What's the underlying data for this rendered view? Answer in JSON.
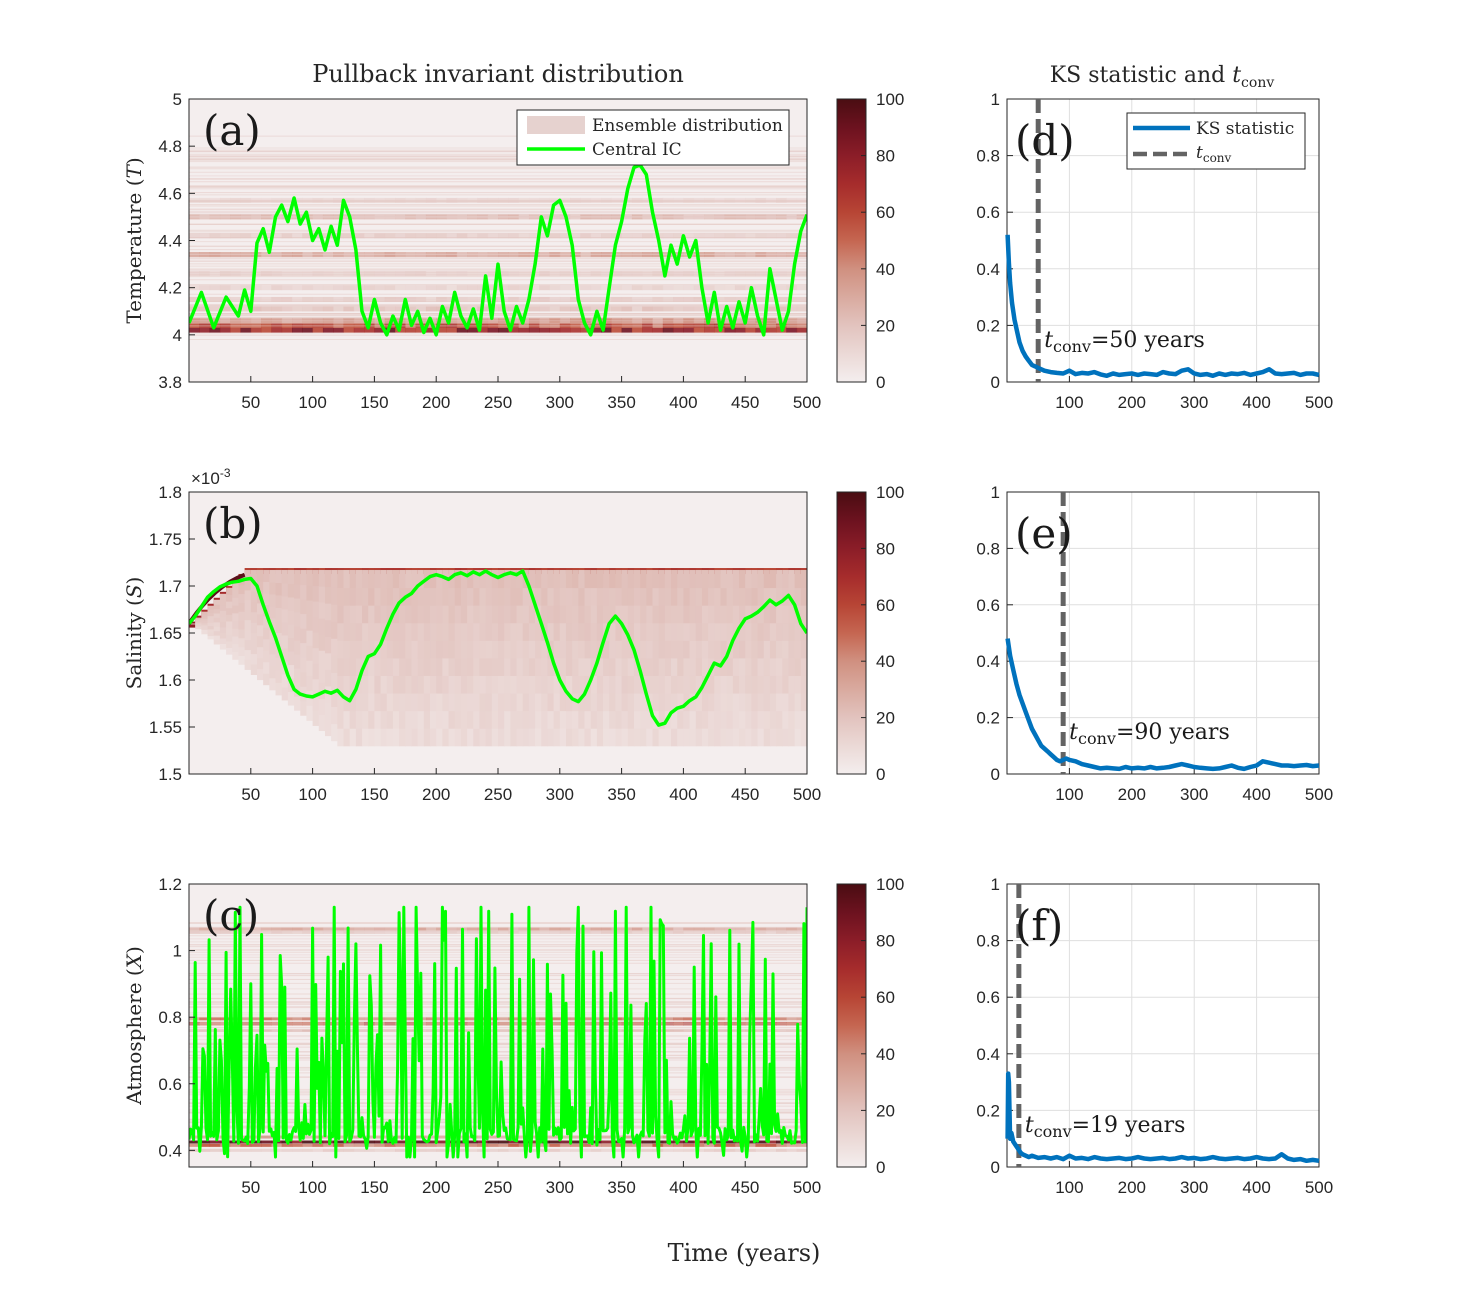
{
  "titles": {
    "left": "Pullback invariant distribution",
    "right_prefix": "KS statistic and ",
    "right_t": "t",
    "right_sub": "conv"
  },
  "xlabel": "Time (years)",
  "legend_left": {
    "ensemble": "Ensemble distribution",
    "central": "Central IC"
  },
  "legend_right": {
    "ks": "KS statistic",
    "t": "t",
    "sub": "conv"
  },
  "colors": {
    "ks_line": "#0072BD",
    "tconv_line": "#636363",
    "central_ic": "#00FF00",
    "cmap_low": "#f3ecec",
    "cmap_high": "#4a0d12"
  },
  "chart_data": [
    {
      "type": "heatmap",
      "panel": "(a)",
      "ylabel": "Temperature (T)",
      "ylabel_parts": [
        "Temperature (",
        "T",
        ")"
      ],
      "xlim": [
        0,
        500
      ],
      "ylim": [
        3.8,
        5
      ],
      "xticks": [
        50,
        100,
        150,
        200,
        250,
        300,
        350,
        400,
        450,
        500
      ],
      "yticks": [
        3.8,
        4,
        4.2,
        4.4,
        4.6,
        4.8,
        5
      ],
      "yticklabels": [
        "3.8",
        "4",
        "4.2",
        "4.4",
        "4.6",
        "4.8",
        "5"
      ],
      "colorbar": {
        "range": [
          0,
          100
        ],
        "ticks": [
          "0",
          "20",
          "40",
          "60",
          "80",
          "100"
        ]
      },
      "bands": [
        [
          4.02,
          75
        ],
        [
          4.04,
          55
        ],
        [
          4.06,
          35
        ],
        [
          4.11,
          18
        ],
        [
          4.15,
          15
        ],
        [
          4.2,
          12
        ],
        [
          4.26,
          12
        ],
        [
          4.34,
          30
        ],
        [
          4.42,
          14
        ],
        [
          4.5,
          22
        ],
        [
          4.57,
          10
        ]
      ],
      "central_ic": {
        "x": [
          0,
          10,
          20,
          30,
          40,
          45,
          50,
          55,
          60,
          65,
          70,
          75,
          80,
          85,
          90,
          95,
          100,
          105,
          110,
          115,
          120,
          125,
          130,
          135,
          140,
          145,
          150,
          155,
          160,
          165,
          170,
          175,
          180,
          185,
          190,
          195,
          200,
          205,
          210,
          215,
          220,
          225,
          230,
          235,
          240,
          245,
          250,
          255,
          260,
          265,
          270,
          275,
          280,
          285,
          290,
          295,
          300,
          305,
          310,
          315,
          320,
          325,
          330,
          335,
          340,
          345,
          350,
          355,
          360,
          365,
          370,
          375,
          380,
          385,
          390,
          395,
          400,
          405,
          410,
          415,
          420,
          425,
          430,
          435,
          440,
          445,
          450,
          455,
          460,
          465,
          470,
          475,
          480,
          485,
          490,
          495,
          500
        ],
        "y": [
          4.05,
          4.18,
          4.03,
          4.16,
          4.08,
          4.19,
          4.1,
          4.39,
          4.45,
          4.35,
          4.5,
          4.55,
          4.48,
          4.58,
          4.47,
          4.52,
          4.4,
          4.45,
          4.36,
          4.46,
          4.38,
          4.57,
          4.5,
          4.36,
          4.1,
          4.03,
          4.15,
          4.05,
          4.0,
          4.08,
          4.02,
          4.15,
          4.04,
          4.1,
          4.01,
          4.07,
          4.0,
          4.12,
          4.05,
          4.18,
          4.08,
          4.03,
          4.11,
          4.02,
          4.25,
          4.07,
          4.3,
          4.1,
          4.02,
          4.12,
          4.05,
          4.15,
          4.3,
          4.5,
          4.42,
          4.55,
          4.57,
          4.5,
          4.38,
          4.15,
          4.05,
          4.0,
          4.1,
          4.02,
          4.2,
          4.38,
          4.48,
          4.62,
          4.71,
          4.72,
          4.68,
          4.52,
          4.4,
          4.25,
          4.38,
          4.3,
          4.42,
          4.33,
          4.4,
          4.2,
          4.05,
          4.18,
          4.02,
          4.12,
          4.03,
          4.14,
          4.05,
          4.2,
          4.08,
          4.0,
          4.28,
          4.15,
          4.02,
          4.1,
          4.3,
          4.44,
          4.51
        ]
      }
    },
    {
      "type": "heatmap",
      "panel": "(b)",
      "ylabel": "Salinity (S)",
      "ylabel_parts": [
        "Salinity (",
        "S",
        ")"
      ],
      "xlim": [
        0,
        500
      ],
      "ylim": [
        1.5,
        1.8
      ],
      "y_multiplier": "×10",
      "y_multiplier_exp": "-3",
      "xticks": [
        50,
        100,
        150,
        200,
        250,
        300,
        350,
        400,
        450,
        500
      ],
      "yticks": [
        1.5,
        1.55,
        1.6,
        1.65,
        1.7,
        1.75,
        1.8
      ],
      "yticklabels": [
        "1.5",
        "1.55",
        "1.6",
        "1.65",
        "1.7",
        "1.75",
        "1.8"
      ],
      "colorbar": {
        "range": [
          0,
          100
        ],
        "ticks": [
          "0",
          "20",
          "40",
          "60",
          "80",
          "100"
        ]
      },
      "central_ic": {
        "x": [
          0,
          5,
          10,
          15,
          20,
          25,
          30,
          35,
          40,
          45,
          50,
          55,
          60,
          65,
          70,
          75,
          80,
          85,
          90,
          95,
          100,
          105,
          110,
          115,
          120,
          125,
          130,
          135,
          140,
          145,
          150,
          155,
          160,
          165,
          170,
          175,
          180,
          185,
          190,
          195,
          200,
          205,
          210,
          215,
          220,
          225,
          230,
          235,
          240,
          245,
          250,
          255,
          260,
          265,
          270,
          275,
          280,
          285,
          290,
          295,
          300,
          305,
          310,
          315,
          320,
          325,
          330,
          335,
          340,
          345,
          350,
          355,
          360,
          365,
          370,
          375,
          380,
          385,
          390,
          395,
          400,
          405,
          410,
          415,
          420,
          425,
          430,
          435,
          440,
          445,
          450,
          455,
          460,
          465,
          470,
          475,
          480,
          485,
          490,
          495,
          500
        ],
        "y": [
          1.66,
          1.668,
          1.678,
          1.688,
          1.694,
          1.699,
          1.702,
          1.704,
          1.705,
          1.707,
          1.708,
          1.7,
          1.68,
          1.662,
          1.645,
          1.625,
          1.605,
          1.59,
          1.585,
          1.583,
          1.582,
          1.585,
          1.588,
          1.586,
          1.589,
          1.582,
          1.578,
          1.59,
          1.61,
          1.625,
          1.628,
          1.638,
          1.655,
          1.67,
          1.682,
          1.688,
          1.692,
          1.7,
          1.705,
          1.71,
          1.712,
          1.71,
          1.707,
          1.712,
          1.714,
          1.711,
          1.715,
          1.712,
          1.716,
          1.712,
          1.709,
          1.712,
          1.714,
          1.712,
          1.716,
          1.7,
          1.68,
          1.66,
          1.64,
          1.618,
          1.6,
          1.588,
          1.58,
          1.577,
          1.585,
          1.6,
          1.618,
          1.64,
          1.66,
          1.668,
          1.66,
          1.648,
          1.632,
          1.61,
          1.585,
          1.562,
          1.552,
          1.554,
          1.565,
          1.57,
          1.572,
          1.578,
          1.582,
          1.592,
          1.605,
          1.618,
          1.615,
          1.625,
          1.642,
          1.655,
          1.665,
          1.668,
          1.672,
          1.678,
          1.685,
          1.68,
          1.684,
          1.69,
          1.68,
          1.66,
          1.65
        ]
      }
    },
    {
      "type": "heatmap",
      "panel": "(c)",
      "ylabel": "Atmosphere (X)",
      "ylabel_parts": [
        "Atmosphere (",
        "X",
        ")"
      ],
      "xlim": [
        0,
        500
      ],
      "ylim": [
        0.35,
        1.2
      ],
      "xticks": [
        50,
        100,
        150,
        200,
        250,
        300,
        350,
        400,
        450,
        500
      ],
      "yticks": [
        0.4,
        0.6,
        0.8,
        1,
        1.2
      ],
      "yticklabels": [
        "0.4",
        "0.6",
        "0.8",
        "1",
        "1.2"
      ],
      "colorbar": {
        "range": [
          0,
          100
        ],
        "ticks": [
          "0",
          "20",
          "40",
          "60",
          "80",
          "100"
        ]
      },
      "bands": [
        [
          0.425,
          100
        ],
        [
          0.415,
          45
        ],
        [
          0.44,
          30
        ],
        [
          0.4,
          14
        ],
        [
          0.47,
          12
        ],
        [
          0.78,
          55
        ],
        [
          0.795,
          40
        ],
        [
          0.76,
          20
        ],
        [
          1.065,
          28
        ],
        [
          1.055,
          14
        ]
      ],
      "central_ic": {
        "t_start": 0,
        "t_end": 500,
        "n_points": 400,
        "y_min": 0.38,
        "y_max": 1.13,
        "levels": [
          0.42,
          0.78,
          1.06,
          0.6
        ]
      }
    },
    {
      "type": "line",
      "panel": "(d)",
      "xlim": [
        0,
        500
      ],
      "ylim": [
        0,
        1
      ],
      "xticks": [
        100,
        200,
        300,
        400,
        500
      ],
      "yticks": [
        0,
        0.2,
        0.4,
        0.6,
        0.8,
        1
      ],
      "yticklabels": [
        "0",
        "0.2",
        "0.4",
        "0.6",
        "0.8",
        "1"
      ],
      "t_conv": 50,
      "annotation": {
        "t": "t",
        "sub": "conv",
        "text": "=50 years"
      },
      "ks_statistic": {
        "x": [
          1,
          3,
          5,
          8,
          12,
          16,
          20,
          25,
          30,
          35,
          40,
          45,
          50,
          55,
          60,
          70,
          80,
          90,
          100,
          110,
          120,
          130,
          140,
          150,
          160,
          170,
          180,
          190,
          200,
          210,
          220,
          230,
          240,
          250,
          260,
          270,
          280,
          290,
          300,
          310,
          320,
          330,
          340,
          350,
          360,
          370,
          380,
          390,
          400,
          410,
          420,
          430,
          440,
          450,
          460,
          470,
          480,
          490,
          500
        ],
        "y": [
          0.52,
          0.42,
          0.35,
          0.28,
          0.22,
          0.18,
          0.14,
          0.11,
          0.09,
          0.075,
          0.06,
          0.055,
          0.05,
          0.045,
          0.04,
          0.035,
          0.032,
          0.03,
          0.04,
          0.028,
          0.032,
          0.03,
          0.035,
          0.027,
          0.022,
          0.03,
          0.025,
          0.028,
          0.03,
          0.025,
          0.03,
          0.028,
          0.025,
          0.035,
          0.03,
          0.028,
          0.04,
          0.045,
          0.03,
          0.025,
          0.028,
          0.022,
          0.03,
          0.025,
          0.03,
          0.028,
          0.032,
          0.025,
          0.03,
          0.035,
          0.045,
          0.03,
          0.028,
          0.03,
          0.032,
          0.025,
          0.03,
          0.03,
          0.025
        ]
      }
    },
    {
      "type": "line",
      "panel": "(e)",
      "xlim": [
        0,
        500
      ],
      "ylim": [
        0,
        1
      ],
      "xticks": [
        100,
        200,
        300,
        400,
        500
      ],
      "yticks": [
        0,
        0.2,
        0.4,
        0.6,
        0.8,
        1
      ],
      "yticklabels": [
        "0",
        "0.2",
        "0.4",
        "0.6",
        "0.8",
        "1"
      ],
      "t_conv": 90,
      "annotation": {
        "t": "t",
        "sub": "conv",
        "text": "=90 years"
      },
      "ks_statistic": {
        "x": [
          1,
          5,
          10,
          15,
          20,
          25,
          30,
          35,
          40,
          45,
          50,
          55,
          60,
          65,
          70,
          75,
          80,
          85,
          90,
          95,
          100,
          110,
          120,
          130,
          140,
          150,
          160,
          170,
          180,
          190,
          200,
          210,
          220,
          230,
          240,
          250,
          260,
          270,
          280,
          290,
          300,
          310,
          320,
          330,
          340,
          350,
          360,
          370,
          380,
          390,
          400,
          410,
          420,
          430,
          440,
          450,
          460,
          470,
          480,
          490,
          500
        ],
        "y": [
          0.48,
          0.42,
          0.37,
          0.32,
          0.28,
          0.25,
          0.22,
          0.19,
          0.16,
          0.14,
          0.12,
          0.1,
          0.09,
          0.08,
          0.07,
          0.06,
          0.05,
          0.045,
          0.05,
          0.055,
          0.05,
          0.045,
          0.035,
          0.03,
          0.025,
          0.02,
          0.022,
          0.02,
          0.018,
          0.025,
          0.02,
          0.022,
          0.02,
          0.025,
          0.02,
          0.022,
          0.025,
          0.03,
          0.035,
          0.03,
          0.025,
          0.022,
          0.02,
          0.018,
          0.02,
          0.025,
          0.03,
          0.022,
          0.018,
          0.025,
          0.03,
          0.045,
          0.04,
          0.035,
          0.03,
          0.03,
          0.028,
          0.03,
          0.032,
          0.028,
          0.03
        ]
      }
    },
    {
      "type": "line",
      "panel": "(f)",
      "xlim": [
        0,
        500
      ],
      "ylim": [
        0,
        1
      ],
      "xticks": [
        100,
        200,
        300,
        400,
        500
      ],
      "yticks": [
        0,
        0.2,
        0.4,
        0.6,
        0.8,
        1
      ],
      "yticklabels": [
        "0",
        "0.2",
        "0.4",
        "0.6",
        "0.8",
        "1"
      ],
      "t_conv": 19,
      "annotation": {
        "t": "t",
        "sub": "conv",
        "text": "=19 years"
      },
      "ks_statistic": {
        "x": [
          1,
          2,
          3,
          5,
          7,
          10,
          13,
          16,
          19,
          22,
          25,
          30,
          35,
          40,
          50,
          60,
          70,
          80,
          90,
          100,
          110,
          120,
          130,
          140,
          150,
          160,
          170,
          180,
          190,
          200,
          210,
          220,
          230,
          240,
          250,
          260,
          270,
          280,
          290,
          300,
          310,
          320,
          330,
          340,
          350,
          360,
          370,
          380,
          390,
          400,
          410,
          420,
          430,
          440,
          450,
          460,
          470,
          480,
          490,
          500
        ],
        "y": [
          0.1,
          0.33,
          0.3,
          0.1,
          0.12,
          0.09,
          0.08,
          0.07,
          0.06,
          0.05,
          0.045,
          0.04,
          0.035,
          0.04,
          0.032,
          0.035,
          0.03,
          0.035,
          0.028,
          0.04,
          0.03,
          0.032,
          0.028,
          0.035,
          0.03,
          0.028,
          0.03,
          0.032,
          0.028,
          0.03,
          0.035,
          0.03,
          0.028,
          0.03,
          0.032,
          0.028,
          0.03,
          0.035,
          0.03,
          0.032,
          0.028,
          0.03,
          0.035,
          0.03,
          0.028,
          0.03,
          0.032,
          0.028,
          0.03,
          0.035,
          0.03,
          0.028,
          0.03,
          0.045,
          0.03,
          0.025,
          0.028,
          0.022,
          0.025,
          0.022
        ]
      }
    }
  ]
}
